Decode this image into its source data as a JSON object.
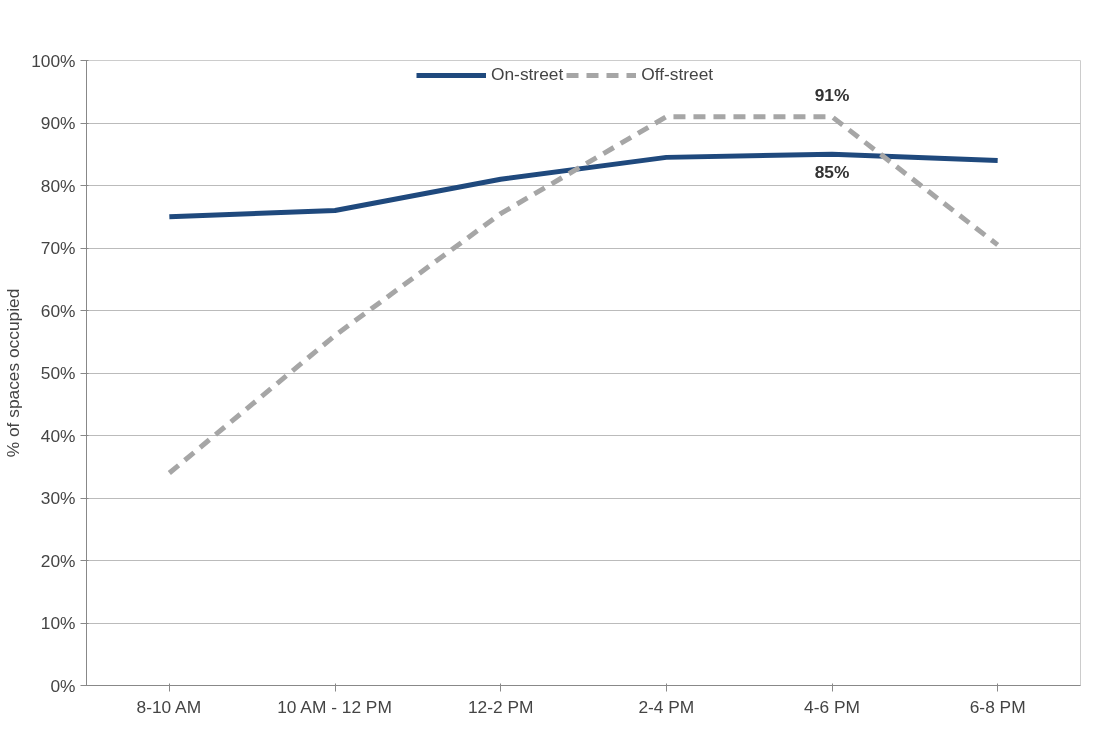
{
  "chart_data": {
    "type": "line",
    "ylabel": "% of spaces occupied",
    "categories": [
      "8-10 AM",
      "10 AM - 12 PM",
      "12-2 PM",
      "2-4 PM",
      "4-6 PM",
      "6-8 PM"
    ],
    "series": [
      {
        "name": "On-street",
        "color": "#1f497d",
        "line_style": "solid",
        "values": [
          75,
          76,
          81,
          84.5,
          85,
          84
        ],
        "value_labels": [
          null,
          null,
          null,
          null,
          "85%",
          null
        ]
      },
      {
        "name": "Off-street",
        "color": "#a6a6a6",
        "line_style": "dashed",
        "values": [
          34,
          56,
          75.5,
          91,
          91,
          70.5
        ],
        "value_labels": [
          null,
          null,
          null,
          null,
          "91%",
          null
        ]
      }
    ],
    "ylim": [
      0,
      100
    ],
    "yticks": [
      {
        "value": 0,
        "label": "0%"
      },
      {
        "value": 10,
        "label": "10%"
      },
      {
        "value": 20,
        "label": "20%"
      },
      {
        "value": 30,
        "label": "30%"
      },
      {
        "value": 40,
        "label": "40%"
      },
      {
        "value": 50,
        "label": "50%"
      },
      {
        "value": 60,
        "label": "60%"
      },
      {
        "value": 70,
        "label": "70%"
      },
      {
        "value": 80,
        "label": "80%"
      },
      {
        "value": 90,
        "label": "90%"
      },
      {
        "value": 100,
        "label": "100%"
      }
    ],
    "grid": "y",
    "legend": "top",
    "marker": "none"
  }
}
